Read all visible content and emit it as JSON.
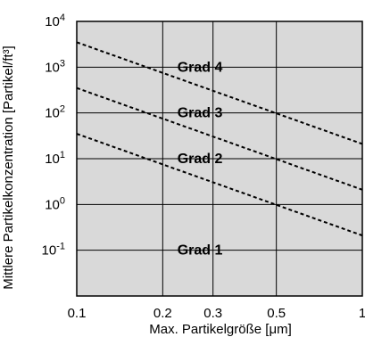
{
  "chart_data": {
    "type": "line",
    "title": "",
    "xlabel": "Max. Partikelgröße [μm]",
    "ylabel": "Mittlere Partikelkonzentration [Partikel/ft³]",
    "x_scale": "log",
    "y_scale": "log",
    "xlim": [
      0.1,
      1
    ],
    "ylim": [
      0.01,
      10000
    ],
    "grid": true,
    "background_color": "#d9d9d9",
    "x_ticks": [
      {
        "value": 0.1,
        "label": "0.1"
      },
      {
        "value": 0.2,
        "label": "0.2"
      },
      {
        "value": 0.3,
        "label": "0.3"
      },
      {
        "value": 0.5,
        "label": "0.5"
      },
      {
        "value": 1,
        "label": "1"
      }
    ],
    "y_ticks": [
      {
        "value": 0.1,
        "base": "10",
        "exp": "-1"
      },
      {
        "value": 1,
        "base": "10",
        "exp": "0"
      },
      {
        "value": 10,
        "base": "10",
        "exp": "1"
      },
      {
        "value": 100,
        "base": "10",
        "exp": "2"
      },
      {
        "value": 1000,
        "base": "10",
        "exp": "3"
      },
      {
        "value": 10000,
        "base": "10",
        "exp": "4"
      }
    ],
    "series": [
      {
        "x": [
          0.1,
          1
        ],
        "y": [
          3500,
          21
        ],
        "style": "dashed"
      },
      {
        "x": [
          0.1,
          1
        ],
        "y": [
          350,
          2.1
        ],
        "style": "dashed"
      },
      {
        "x": [
          0.1,
          1
        ],
        "y": [
          35,
          0.21
        ],
        "style": "dashed"
      }
    ],
    "annotations": [
      {
        "text": "Grad 4",
        "x": 0.27,
        "y": 1000
      },
      {
        "text": "Grad 3",
        "x": 0.27,
        "y": 100
      },
      {
        "text": "Grad 2",
        "x": 0.27,
        "y": 10
      },
      {
        "text": "Grad 1",
        "x": 0.27,
        "y": 0.1
      }
    ]
  }
}
